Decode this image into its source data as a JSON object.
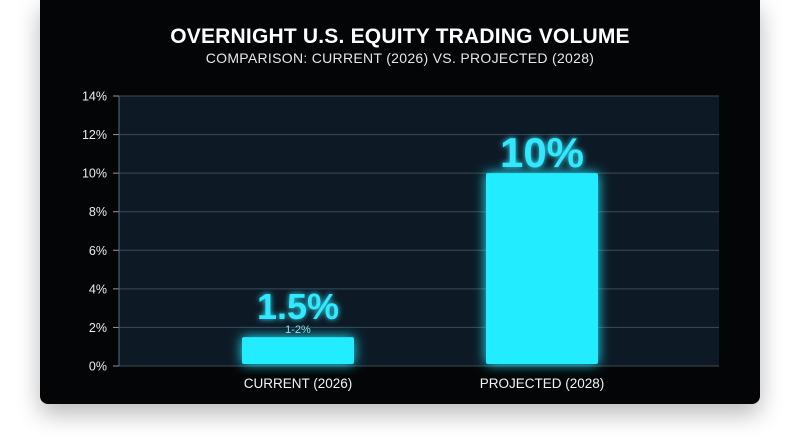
{
  "chart_data": {
    "type": "bar",
    "title": "OVERNIGHT U.S. EQUITY TRADING VOLUME",
    "subtitle": "COMPARISON: CURRENT (2026) VS. PROJECTED (2028)",
    "categories": [
      "CURRENT (2026)",
      "PROJECTED (2028)"
    ],
    "values": [
      1.5,
      10
    ],
    "value_labels": [
      "1.5%",
      "10%"
    ],
    "value_sublabels": [
      "1-2%",
      ""
    ],
    "ylim": [
      0,
      14
    ],
    "yticks": [
      "0%",
      "2%",
      "4%",
      "6%",
      "8%",
      "10%",
      "12%",
      "14%"
    ],
    "xlabel": "",
    "ylabel": "",
    "grid": true,
    "legend": "none"
  },
  "colors": {
    "background": "#040506",
    "plot_area": "#0d1a26",
    "bar": "#22ecff",
    "grid": "#3a4a58"
  }
}
